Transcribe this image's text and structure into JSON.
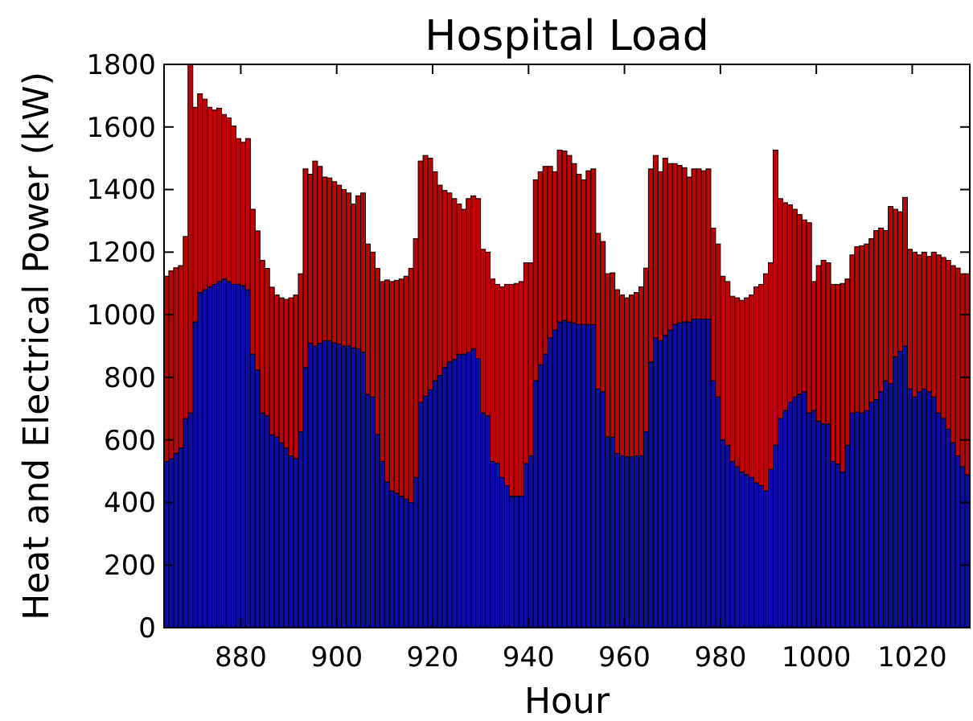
{
  "chart_data": {
    "type": "bar",
    "title": "Hospital Load",
    "xlabel": "Hour",
    "ylabel": "Heat and Electrical Power (kW)",
    "stacked": true,
    "x": [
      864,
      865,
      866,
      867,
      868,
      869,
      870,
      871,
      872,
      873,
      874,
      875,
      876,
      877,
      878,
      879,
      880,
      881,
      882,
      883,
      884,
      885,
      886,
      887,
      888,
      889,
      890,
      891,
      892,
      893,
      894,
      895,
      896,
      897,
      898,
      899,
      900,
      901,
      902,
      903,
      904,
      905,
      906,
      907,
      908,
      909,
      910,
      911,
      912,
      913,
      914,
      915,
      916,
      917,
      918,
      919,
      920,
      921,
      922,
      923,
      924,
      925,
      926,
      927,
      928,
      929,
      930,
      931,
      932,
      933,
      934,
      935,
      936,
      937,
      938,
      939,
      940,
      941,
      942,
      943,
      944,
      945,
      946,
      947,
      948,
      949,
      950,
      951,
      952,
      953,
      954,
      955,
      956,
      957,
      958,
      959,
      960,
      961,
      962,
      963,
      964,
      965,
      966,
      967,
      968,
      969,
      970,
      971,
      972,
      973,
      974,
      975,
      976,
      977,
      978,
      979,
      980,
      981,
      982,
      983,
      984,
      985,
      986,
      987,
      988,
      989,
      990,
      991,
      992,
      993,
      994,
      995,
      996,
      997,
      998,
      999,
      1000,
      1001,
      1002,
      1003,
      1004,
      1005,
      1006,
      1007,
      1008,
      1009,
      1010,
      1011,
      1012,
      1013,
      1014,
      1015,
      1016,
      1017,
      1018,
      1019,
      1020,
      1021,
      1022,
      1023,
      1024,
      1025,
      1026,
      1027,
      1028,
      1029,
      1030,
      1031
    ],
    "series": [
      {
        "color": "#0c0ca8",
        "values": [
          531,
          540,
          557,
          574,
          668,
          686,
          977,
          1071,
          1080,
          1089,
          1097,
          1106,
          1114,
          1106,
          1097,
          1097,
          1093,
          1080,
          874,
          823,
          686,
          677,
          617,
          609,
          591,
          574,
          549,
          540,
          626,
          831,
          909,
          900,
          909,
          917,
          917,
          910,
          906,
          900,
          900,
          895,
          891,
          880,
          746,
          737,
          617,
          531,
          466,
          437,
          429,
          420,
          411,
          400,
          480,
          720,
          740,
          760,
          789,
          806,
          831,
          849,
          857,
          874,
          874,
          880,
          891,
          860,
          686,
          677,
          531,
          525,
          480,
          454,
          420,
          420,
          420,
          525,
          549,
          789,
          840,
          874,
          926,
          951,
          977,
          982,
          977,
          974,
          969,
          969,
          969,
          969,
          763,
          754,
          609,
          609,
          557,
          549,
          546,
          546,
          549,
          549,
          626,
          849,
          926,
          917,
          934,
          951,
          969,
          974,
          977,
          977,
          986,
          986,
          986,
          986,
          789,
          737,
          600,
          583,
          531,
          514,
          497,
          489,
          480,
          463,
          454,
          437,
          506,
          583,
          669,
          694,
          720,
          737,
          746,
          754,
          686,
          694,
          660,
          651,
          651,
          531,
          523,
          497,
          583,
          686,
          689,
          686,
          694,
          720,
          729,
          754,
          789,
          780,
          866,
          883,
          900,
          763,
          737,
          754,
          763,
          754,
          737,
          686,
          669,
          634,
          591,
          549,
          514,
          489
        ]
      },
      {
        "color": "#c00000",
        "values": [
          592,
          600,
          593,
          583,
          582,
          1114,
          686,
          635,
          609,
          574,
          557,
          554,
          526,
          523,
          506,
          466,
          458,
          483,
          463,
          445,
          488,
          471,
          471,
          454,
          463,
          475,
          505,
          523,
          505,
          635,
          540,
          591,
          565,
          523,
          520,
          515,
          508,
          500,
          489,
          459,
          489,
          509,
          480,
          463,
          531,
          575,
          645,
          669,
          681,
          694,
          712,
          748,
          763,
          771,
          769,
          740,
          668,
          608,
          566,
          540,
          514,
          480,
          463,
          491,
          489,
          511,
          523,
          523,
          583,
          572,
          609,
          643,
          677,
          680,
          686,
          641,
          617,
          642,
          617,
          600,
          548,
          506,
          549,
          541,
          532,
          509,
          480,
          462,
          491,
          497,
          497,
          480,
          522,
          525,
          523,
          514,
          508,
          517,
          522,
          540,
          523,
          617,
          583,
          540,
          566,
          532,
          514,
          503,
          493,
          463,
          480,
          480,
          474,
          480,
          488,
          489,
          523,
          523,
          528,
          540,
          549,
          565,
          583,
          626,
          643,
          694,
          660,
          943,
          702,
          664,
          631,
          600,
          574,
          549,
          608,
          412,
          497,
          523,
          515,
          566,
          574,
          603,
          531,
          505,
          528,
          534,
          532,
          523,
          540,
          523,
          480,
          566,
          471,
          446,
          475,
          446,
          463,
          437,
          437,
          432,
          463,
          505,
          514,
          540,
          566,
          600,
          617,
          642
        ]
      }
    ],
    "xlim": [
      864,
      1032
    ],
    "xticks": [
      880,
      900,
      920,
      940,
      960,
      980,
      1000,
      1020
    ],
    "ylim": [
      0,
      1800
    ],
    "yticks": [
      0,
      200,
      400,
      600,
      800,
      1000,
      1200,
      1400,
      1600,
      1800
    ],
    "grid": false
  }
}
